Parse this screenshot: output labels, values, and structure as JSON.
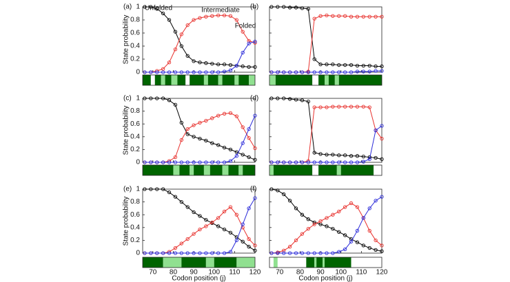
{
  "chart_data": [
    {
      "type": "line",
      "panel_label": "(a)",
      "ylabel": "State probability",
      "x": [
        66,
        69,
        72,
        75,
        78,
        81,
        84,
        87,
        90,
        93,
        96,
        99,
        102,
        105,
        108,
        111,
        114,
        117,
        120
      ],
      "series": [
        {
          "name": "Unfolded",
          "color": "#000000",
          "values": [
            1,
            1,
            0.97,
            0.9,
            0.8,
            0.62,
            0.4,
            0.25,
            0.17,
            0.15,
            0.14,
            0.13,
            0.12,
            0.12,
            0.11,
            0.1,
            0.09,
            0.08,
            0.08
          ]
        },
        {
          "name": "Intermediate",
          "color": "#e8322e",
          "values": [
            0,
            0,
            0.02,
            0.05,
            0.15,
            0.35,
            0.58,
            0.72,
            0.8,
            0.83,
            0.85,
            0.86,
            0.87,
            0.87,
            0.86,
            0.8,
            0.62,
            0.48,
            0.45
          ]
        },
        {
          "name": "Folded",
          "color": "#2b2bd9",
          "values": [
            0,
            0,
            0,
            0,
            0,
            0,
            0,
            0,
            0,
            0,
            0,
            0,
            0,
            0.01,
            0.03,
            0.1,
            0.3,
            0.44,
            0.47
          ]
        }
      ],
      "xlim": [
        65,
        120
      ],
      "ylim": [
        0,
        1
      ],
      "xticks": [
        70,
        80,
        90,
        100,
        110,
        120
      ],
      "yticks": [
        0,
        0.2,
        0.4,
        0.6,
        0.8,
        1
      ],
      "strip": [
        {
          "start": 65,
          "end": 69,
          "color": "#006400"
        },
        {
          "start": 69,
          "end": 71,
          "color": "#ffffff"
        },
        {
          "start": 71,
          "end": 74,
          "color": "#006400"
        },
        {
          "start": 74,
          "end": 76,
          "color": "#90e090"
        },
        {
          "start": 76,
          "end": 79,
          "color": "#006400"
        },
        {
          "start": 79,
          "end": 82,
          "color": "#90e090"
        },
        {
          "start": 82,
          "end": 86,
          "color": "#006400"
        },
        {
          "start": 86,
          "end": 88,
          "color": "#ffffff"
        },
        {
          "start": 88,
          "end": 95,
          "color": "#006400"
        },
        {
          "start": 95,
          "end": 97,
          "color": "#90e090"
        },
        {
          "start": 97,
          "end": 102,
          "color": "#006400"
        },
        {
          "start": 102,
          "end": 104,
          "color": "#90e090"
        },
        {
          "start": 104,
          "end": 110,
          "color": "#006400"
        },
        {
          "start": 110,
          "end": 112,
          "color": "#90e090"
        },
        {
          "start": 112,
          "end": 117,
          "color": "#006400"
        },
        {
          "start": 117,
          "end": 120,
          "color": "#90e090"
        }
      ]
    },
    {
      "type": "line",
      "panel_label": "(b)",
      "x": [
        66,
        69,
        72,
        75,
        78,
        81,
        84,
        87,
        90,
        93,
        96,
        99,
        102,
        105,
        108,
        111,
        114,
        117,
        120
      ],
      "series": [
        {
          "color": "#000000",
          "values": [
            1,
            1,
            1,
            0.99,
            0.99,
            0.98,
            0.97,
            0.2,
            0.12,
            0.12,
            0.12,
            0.11,
            0.11,
            0.11,
            0.1,
            0.1,
            0.1,
            0.09,
            0.09
          ]
        },
        {
          "color": "#e8322e",
          "values": [
            0,
            0,
            0,
            0,
            0,
            0,
            0.01,
            0.82,
            0.86,
            0.87,
            0.86,
            0.86,
            0.86,
            0.85,
            0.85,
            0.85,
            0.85,
            0.85,
            0.85
          ]
        },
        {
          "color": "#2b2bd9",
          "values": [
            0,
            0,
            0,
            0,
            0,
            0,
            0,
            0,
            0,
            0,
            0,
            0,
            0,
            0,
            0.01,
            0.01,
            0.01,
            0.02,
            0.02
          ]
        }
      ],
      "xlim": [
        65,
        120
      ],
      "ylim": [
        0,
        1
      ],
      "xticks": [
        70,
        80,
        90,
        100,
        110,
        120
      ],
      "yticks": [
        0,
        0.2,
        0.4,
        0.6,
        0.8,
        1
      ],
      "strip": [
        {
          "start": 65,
          "end": 68,
          "color": "#90e090"
        },
        {
          "start": 68,
          "end": 86,
          "color": "#006400"
        },
        {
          "start": 86,
          "end": 89,
          "color": "#ffffff"
        },
        {
          "start": 89,
          "end": 92,
          "color": "#006400"
        },
        {
          "start": 92,
          "end": 94,
          "color": "#90e090"
        },
        {
          "start": 94,
          "end": 97,
          "color": "#006400"
        },
        {
          "start": 97,
          "end": 99,
          "color": "#90e090"
        },
        {
          "start": 99,
          "end": 120,
          "color": "#006400"
        }
      ]
    },
    {
      "type": "line",
      "panel_label": "(c)",
      "ylabel": "State probability",
      "x": [
        66,
        69,
        72,
        75,
        78,
        81,
        84,
        87,
        90,
        93,
        96,
        99,
        102,
        105,
        108,
        111,
        114,
        117,
        120
      ],
      "series": [
        {
          "color": "#000000",
          "values": [
            1,
            1,
            1,
            1,
            0.97,
            0.9,
            0.62,
            0.44,
            0.4,
            0.37,
            0.34,
            0.3,
            0.27,
            0.23,
            0.2,
            0.16,
            0.12,
            0.08,
            0.04
          ]
        },
        {
          "color": "#e8322e",
          "values": [
            0,
            0,
            0,
            0,
            0.02,
            0.08,
            0.35,
            0.52,
            0.58,
            0.62,
            0.65,
            0.69,
            0.73,
            0.76,
            0.77,
            0.72,
            0.55,
            0.38,
            0.22
          ]
        },
        {
          "color": "#2b2bd9",
          "values": [
            0,
            0,
            0,
            0,
            0,
            0,
            0,
            0,
            0,
            0,
            0,
            0,
            0,
            0,
            0.02,
            0.1,
            0.3,
            0.52,
            0.73
          ]
        }
      ],
      "xlim": [
        65,
        120
      ],
      "ylim": [
        0,
        1
      ],
      "xticks": [
        70,
        80,
        90,
        100,
        110,
        120
      ],
      "yticks": [
        0,
        0.2,
        0.4,
        0.6,
        0.8,
        1
      ],
      "strip": [
        {
          "start": 65,
          "end": 80,
          "color": "#006400"
        },
        {
          "start": 80,
          "end": 83,
          "color": "#90e090"
        },
        {
          "start": 83,
          "end": 88,
          "color": "#006400"
        },
        {
          "start": 88,
          "end": 90,
          "color": "#90e090"
        },
        {
          "start": 90,
          "end": 95,
          "color": "#006400"
        },
        {
          "start": 95,
          "end": 98,
          "color": "#90e090"
        },
        {
          "start": 98,
          "end": 104,
          "color": "#006400"
        },
        {
          "start": 104,
          "end": 107,
          "color": "#90e090"
        },
        {
          "start": 107,
          "end": 112,
          "color": "#006400"
        },
        {
          "start": 112,
          "end": 114,
          "color": "#90e090"
        },
        {
          "start": 114,
          "end": 120,
          "color": "#006400"
        }
      ]
    },
    {
      "type": "line",
      "panel_label": "(d)",
      "x": [
        66,
        69,
        72,
        75,
        78,
        81,
        84,
        87,
        90,
        93,
        96,
        99,
        102,
        105,
        108,
        111,
        114,
        117,
        120
      ],
      "series": [
        {
          "color": "#000000",
          "values": [
            1,
            1,
            1,
            0.99,
            0.98,
            0.97,
            0.95,
            0.15,
            0.13,
            0.12,
            0.12,
            0.11,
            0.11,
            0.1,
            0.1,
            0.09,
            0.08,
            0.07,
            0.05
          ]
        },
        {
          "color": "#e8322e",
          "values": [
            0,
            0,
            0,
            0,
            0,
            0,
            0.02,
            0.86,
            0.86,
            0.86,
            0.87,
            0.87,
            0.87,
            0.87,
            0.87,
            0.87,
            0.86,
            0.5,
            0.37
          ]
        },
        {
          "color": "#2b2bd9",
          "values": [
            0,
            0,
            0,
            0,
            0,
            0,
            0,
            0,
            0,
            0,
            0,
            0,
            0,
            0,
            0,
            0.01,
            0.05,
            0.5,
            0.57
          ]
        }
      ],
      "xlim": [
        65,
        120
      ],
      "ylim": [
        0,
        1
      ],
      "xticks": [
        70,
        80,
        90,
        100,
        110,
        120
      ],
      "yticks": [
        0,
        0.2,
        0.4,
        0.6,
        0.8,
        1
      ],
      "strip": [
        {
          "start": 65,
          "end": 67,
          "color": "#90e090"
        },
        {
          "start": 67,
          "end": 86,
          "color": "#006400"
        },
        {
          "start": 86,
          "end": 89,
          "color": "#ffffff"
        },
        {
          "start": 89,
          "end": 98,
          "color": "#006400"
        },
        {
          "start": 98,
          "end": 100,
          "color": "#90e090"
        },
        {
          "start": 100,
          "end": 116,
          "color": "#006400"
        },
        {
          "start": 116,
          "end": 120,
          "color": "#ffffff"
        }
      ]
    },
    {
      "type": "line",
      "panel_label": "(e)",
      "ylabel": "State probability",
      "xlabel": "Codon position (j)",
      "x": [
        66,
        69,
        72,
        75,
        78,
        81,
        84,
        87,
        90,
        93,
        96,
        99,
        102,
        105,
        108,
        111,
        114,
        117,
        120
      ],
      "series": [
        {
          "color": "#000000",
          "values": [
            1,
            1,
            1,
            1,
            0.95,
            0.88,
            0.8,
            0.72,
            0.64,
            0.58,
            0.52,
            0.47,
            0.42,
            0.37,
            0.32,
            0.25,
            0.18,
            0.1,
            0.04
          ]
        },
        {
          "color": "#e8322e",
          "values": [
            0,
            0,
            0,
            0,
            0.02,
            0.08,
            0.15,
            0.22,
            0.3,
            0.37,
            0.42,
            0.48,
            0.55,
            0.65,
            0.72,
            0.6,
            0.4,
            0.22,
            0.12
          ]
        },
        {
          "color": "#2b2bd9",
          "values": [
            0,
            0,
            0,
            0,
            0,
            0,
            0,
            0,
            0,
            0,
            0,
            0,
            0,
            0,
            0.02,
            0.2,
            0.45,
            0.7,
            0.86
          ]
        }
      ],
      "xlim": [
        65,
        120
      ],
      "ylim": [
        0,
        1
      ],
      "xticks": [
        70,
        80,
        90,
        100,
        110,
        120
      ],
      "yticks": [
        0,
        0.2,
        0.4,
        0.6,
        0.8,
        1
      ],
      "strip": [
        {
          "start": 65,
          "end": 75,
          "color": "#006400"
        },
        {
          "start": 75,
          "end": 84,
          "color": "#90e090"
        },
        {
          "start": 84,
          "end": 96,
          "color": "#006400"
        },
        {
          "start": 96,
          "end": 100,
          "color": "#90e090"
        },
        {
          "start": 100,
          "end": 111,
          "color": "#006400"
        },
        {
          "start": 111,
          "end": 120,
          "color": "#90e090"
        }
      ]
    },
    {
      "type": "line",
      "panel_label": "(f)",
      "xlabel": "Codon position (j)",
      "x": [
        66,
        69,
        72,
        75,
        78,
        81,
        84,
        87,
        90,
        93,
        96,
        99,
        102,
        105,
        108,
        111,
        114,
        117,
        120
      ],
      "series": [
        {
          "color": "#000000",
          "values": [
            1,
            0.98,
            0.92,
            0.82,
            0.7,
            0.6,
            0.53,
            0.48,
            0.45,
            0.42,
            0.38,
            0.33,
            0.28,
            0.22,
            0.17,
            0.12,
            0.08,
            0.05,
            0.03
          ]
        },
        {
          "color": "#e8322e",
          "values": [
            0,
            0.01,
            0.04,
            0.1,
            0.2,
            0.3,
            0.38,
            0.45,
            0.5,
            0.55,
            0.6,
            0.65,
            0.72,
            0.78,
            0.72,
            0.55,
            0.35,
            0.2,
            0.12
          ]
        },
        {
          "color": "#2b2bd9",
          "values": [
            0,
            0,
            0,
            0,
            0,
            0,
            0,
            0,
            0,
            0,
            0,
            0.02,
            0.06,
            0.18,
            0.35,
            0.55,
            0.7,
            0.82,
            0.88
          ]
        }
      ],
      "xlim": [
        65,
        120
      ],
      "ylim": [
        0,
        1
      ],
      "xticks": [
        70,
        80,
        90,
        100,
        110,
        120
      ],
      "yticks": [
        0,
        0.2,
        0.4,
        0.6,
        0.8,
        1
      ],
      "strip": [
        {
          "start": 65,
          "end": 67,
          "color": "#ffffff"
        },
        {
          "start": 67,
          "end": 69,
          "color": "#90e090"
        },
        {
          "start": 69,
          "end": 83,
          "color": "#ffffff"
        },
        {
          "start": 83,
          "end": 87,
          "color": "#006400"
        },
        {
          "start": 87,
          "end": 88,
          "color": "#90e090"
        },
        {
          "start": 88,
          "end": 91,
          "color": "#006400"
        },
        {
          "start": 91,
          "end": 92,
          "color": "#90e090"
        },
        {
          "start": 92,
          "end": 105,
          "color": "#006400"
        },
        {
          "start": 105,
          "end": 120,
          "color": "#ffffff"
        }
      ]
    }
  ]
}
